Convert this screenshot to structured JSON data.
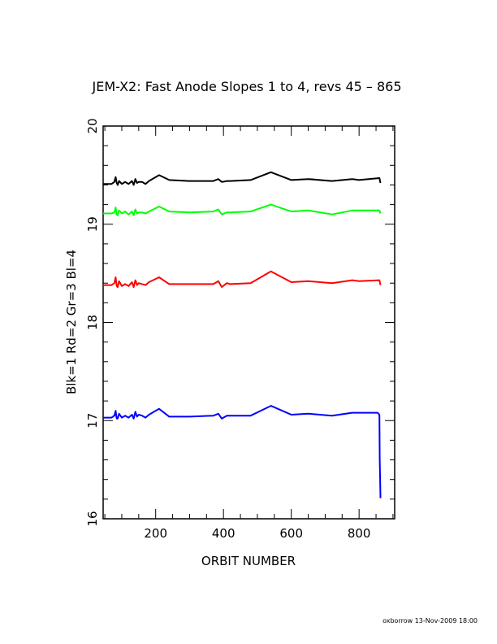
{
  "chart_data": {
    "type": "line",
    "title": "JEM-X2: Fast Anode Slopes 1 to 4, revs 45 – 865",
    "xlabel": "ORBIT NUMBER",
    "ylabel": "Blk=1 Rd=2 Gr=3 Bl=4",
    "xlim": [
      45,
      905
    ],
    "ylim": [
      16,
      20
    ],
    "xticks": [
      200,
      400,
      600,
      800
    ],
    "yticks": [
      16,
      17,
      18,
      19,
      20
    ],
    "grid": false,
    "series": [
      {
        "color": "#000000",
        "x": [
          45,
          70,
          78,
          82,
          85,
          88,
          92,
          100,
          110,
          120,
          130,
          135,
          140,
          145,
          150,
          160,
          170,
          180,
          210,
          240,
          300,
          370,
          385,
          395,
          410,
          420,
          480,
          540,
          600,
          650,
          720,
          780,
          800,
          860,
          863
        ],
        "y": [
          19.41,
          19.41,
          19.43,
          19.48,
          19.42,
          19.4,
          19.44,
          19.41,
          19.43,
          19.41,
          19.44,
          19.4,
          19.46,
          19.42,
          19.43,
          19.43,
          19.41,
          19.44,
          19.5,
          19.45,
          19.44,
          19.44,
          19.46,
          19.43,
          19.44,
          19.44,
          19.45,
          19.53,
          19.45,
          19.46,
          19.44,
          19.46,
          19.45,
          19.47,
          19.42
        ]
      },
      {
        "color": "#00ff00",
        "x": [
          45,
          70,
          78,
          82,
          85,
          88,
          92,
          100,
          110,
          120,
          130,
          135,
          140,
          145,
          150,
          160,
          170,
          180,
          210,
          240,
          300,
          370,
          385,
          395,
          410,
          420,
          480,
          540,
          600,
          650,
          720,
          780,
          800,
          860,
          863
        ],
        "y": [
          19.11,
          19.11,
          19.12,
          19.17,
          19.1,
          19.09,
          19.14,
          19.11,
          19.13,
          19.1,
          19.13,
          19.09,
          19.15,
          19.11,
          19.12,
          19.12,
          19.11,
          19.13,
          19.18,
          19.13,
          19.12,
          19.13,
          19.15,
          19.1,
          19.12,
          19.12,
          19.13,
          19.2,
          19.13,
          19.14,
          19.1,
          19.14,
          19.14,
          19.14,
          19.11
        ]
      },
      {
        "color": "#ff0000",
        "x": [
          45,
          70,
          78,
          82,
          85,
          88,
          92,
          100,
          110,
          120,
          130,
          135,
          140,
          145,
          150,
          160,
          170,
          180,
          210,
          240,
          300,
          370,
          385,
          395,
          410,
          420,
          480,
          540,
          600,
          650,
          720,
          780,
          800,
          860,
          863
        ],
        "y": [
          18.38,
          18.38,
          18.4,
          18.46,
          18.37,
          18.36,
          18.42,
          18.37,
          18.39,
          18.37,
          18.41,
          18.36,
          18.43,
          18.38,
          18.4,
          18.39,
          18.38,
          18.41,
          18.46,
          18.39,
          18.39,
          18.39,
          18.42,
          18.36,
          18.4,
          18.39,
          18.4,
          18.52,
          18.41,
          18.42,
          18.4,
          18.43,
          18.42,
          18.43,
          18.38
        ]
      },
      {
        "color": "#0000ff",
        "x": [
          45,
          70,
          78,
          82,
          85,
          88,
          92,
          100,
          110,
          120,
          130,
          135,
          140,
          145,
          150,
          160,
          170,
          180,
          210,
          240,
          300,
          370,
          385,
          395,
          410,
          420,
          480,
          540,
          600,
          650,
          720,
          780,
          800,
          855,
          860,
          861,
          862,
          863
        ],
        "y": [
          17.03,
          17.03,
          17.05,
          17.1,
          17.02,
          17.02,
          17.07,
          17.03,
          17.05,
          17.03,
          17.06,
          17.02,
          17.09,
          17.04,
          17.06,
          17.05,
          17.03,
          17.06,
          17.12,
          17.04,
          17.04,
          17.05,
          17.07,
          17.02,
          17.05,
          17.05,
          17.05,
          17.15,
          17.06,
          17.07,
          17.05,
          17.08,
          17.08,
          17.08,
          17.06,
          16.6,
          16.4,
          16.21
        ]
      }
    ]
  },
  "footer": "oxborrow 13-Nov-2009 18:00"
}
